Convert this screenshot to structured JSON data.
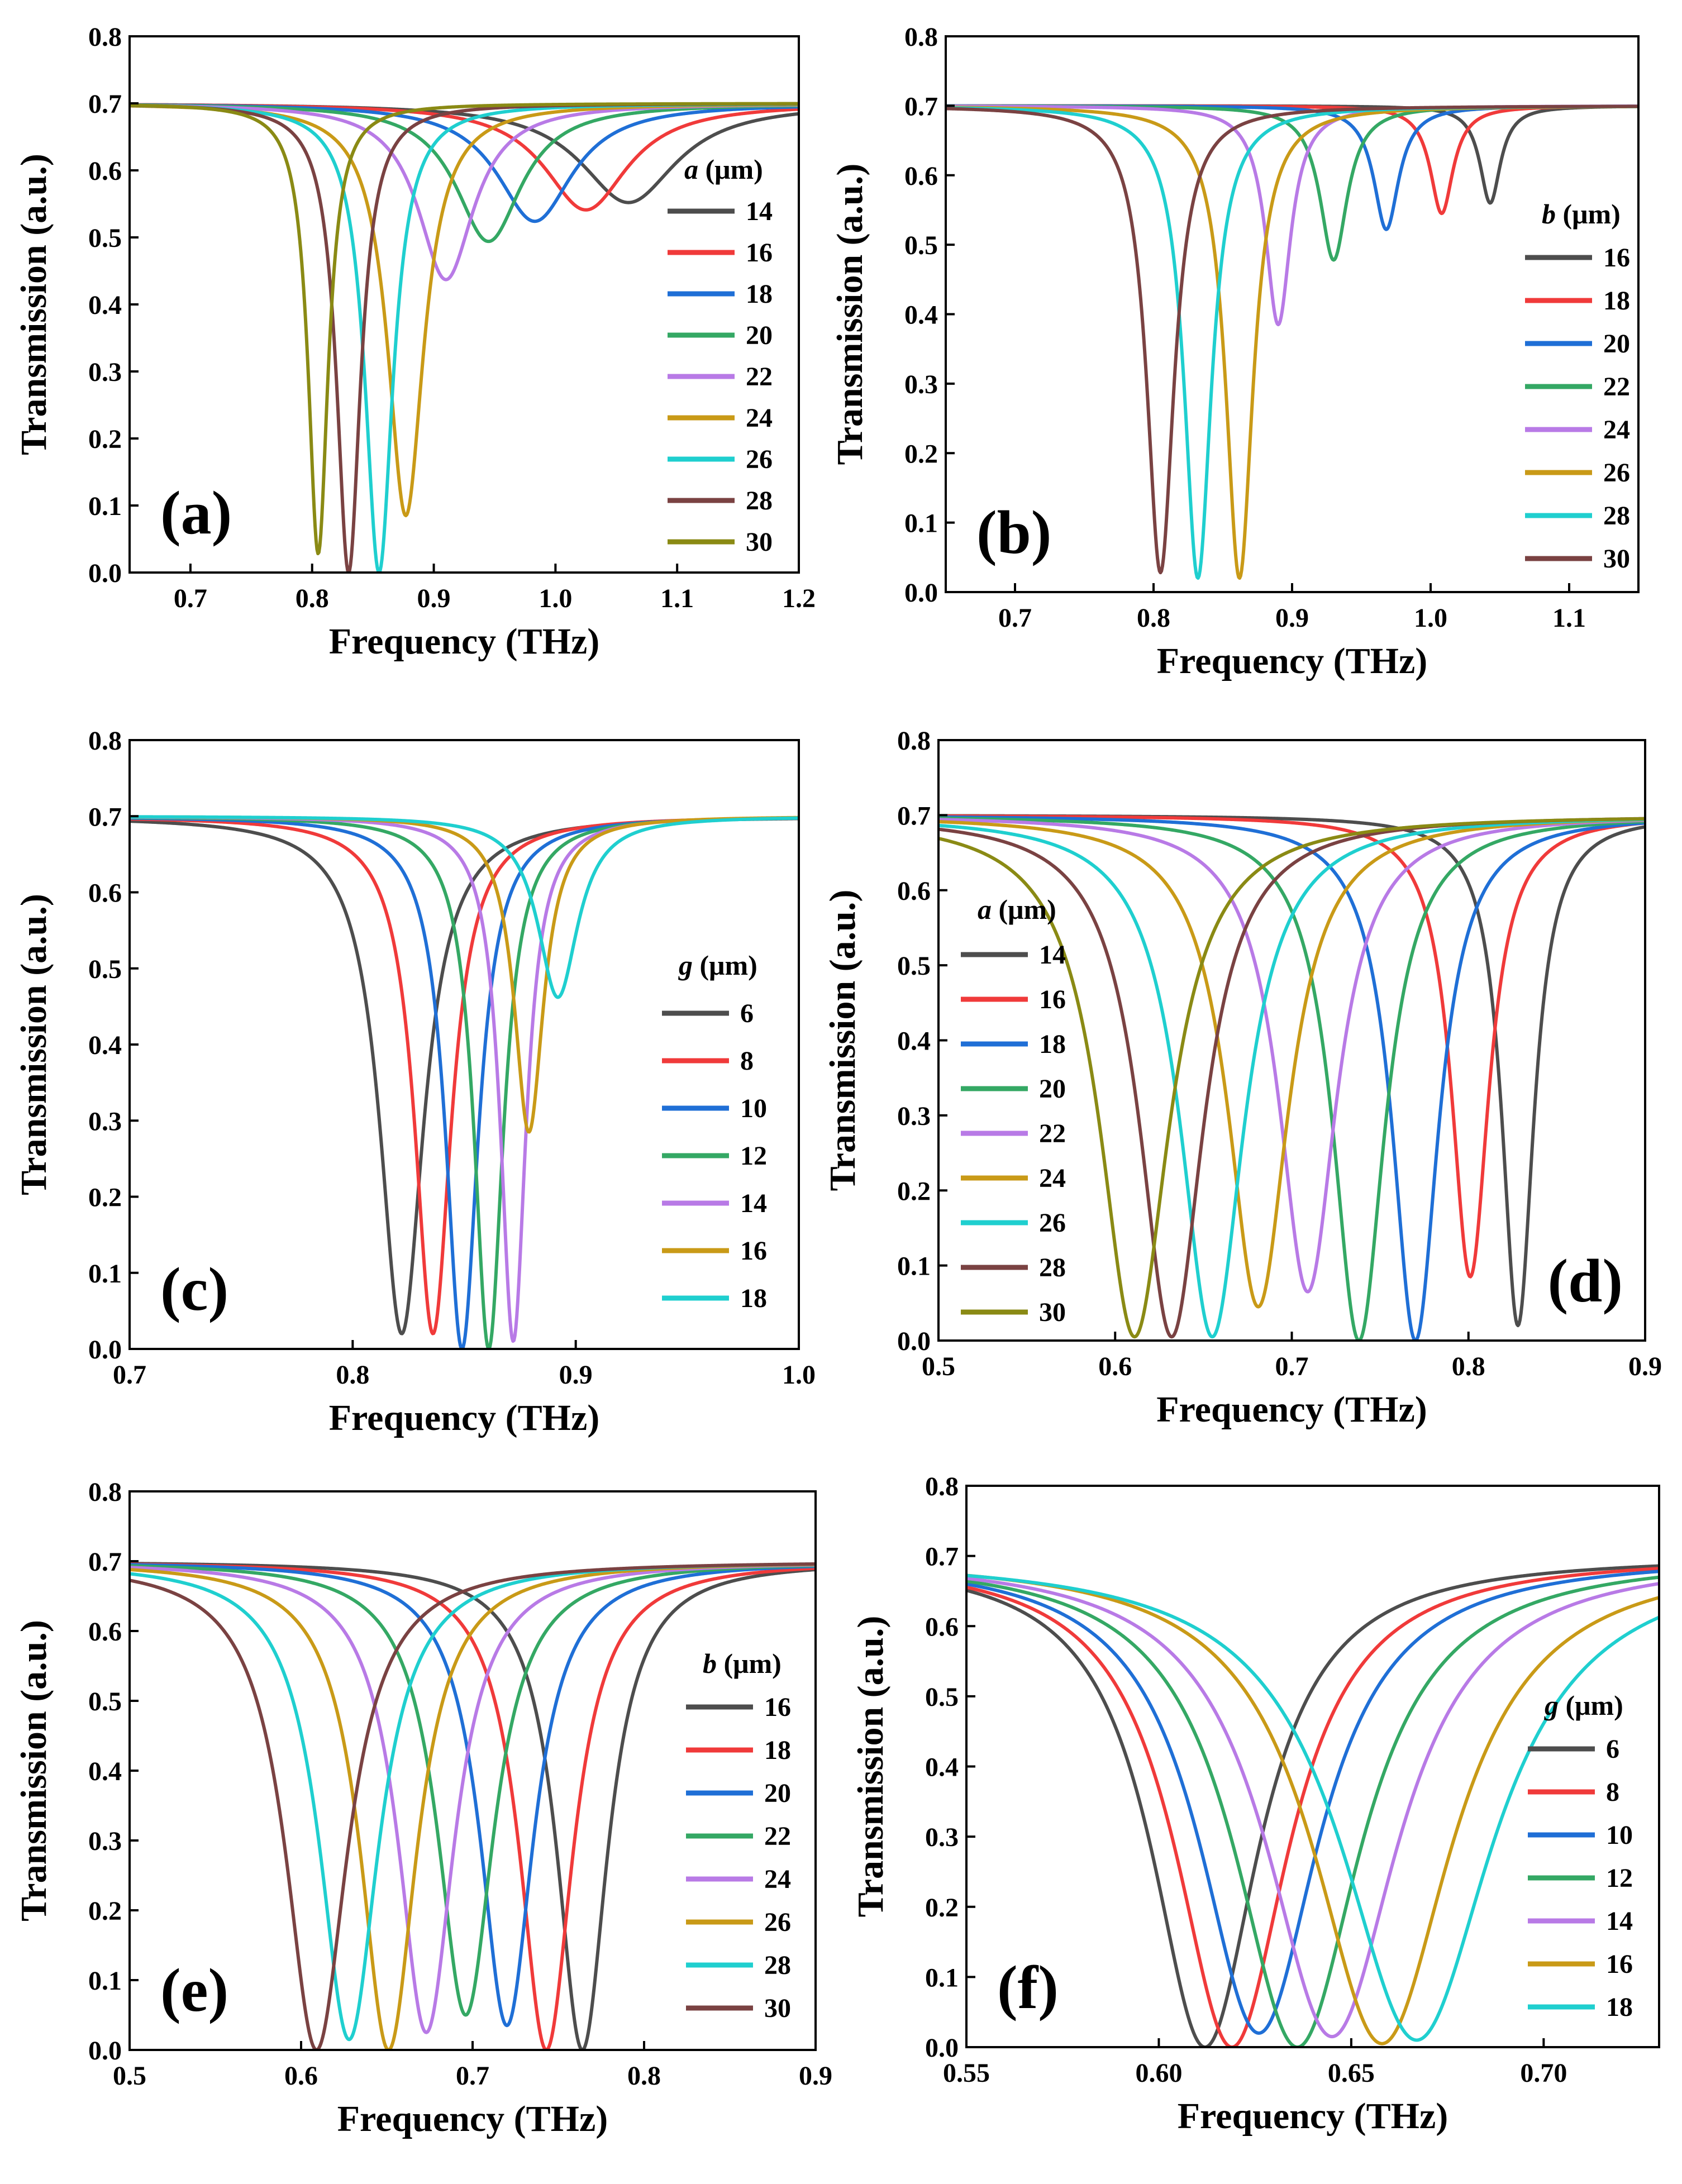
{
  "colors": {
    "c1": "#4d4d4d",
    "c2": "#f03a3a",
    "c3": "#1f6fd6",
    "c4": "#34a864",
    "c5": "#b87ae6",
    "c6": "#c99a17",
    "c7": "#1fcfcf",
    "c8": "#7a4242",
    "c9": "#8a8a14"
  },
  "chart_data": [
    {
      "id": "a",
      "type": "line",
      "panel_label": "(a)",
      "xlabel": "Frequency (THz)",
      "ylabel": "Transmission (a.u.)",
      "xlim": [
        0.65,
        1.2
      ],
      "ylim": [
        0.0,
        0.8
      ],
      "xticks": [
        0.7,
        0.8,
        0.9,
        1.0,
        1.1,
        1.2
      ],
      "yticks": [
        0.0,
        0.1,
        0.2,
        0.3,
        0.4,
        0.5,
        0.6,
        0.7,
        0.8
      ],
      "legend_var": "a",
      "legend_unit": " (μm)",
      "legend_location": "right",
      "series": [
        {
          "name": "14",
          "color": "c1",
          "f0": 1.06,
          "min": 0.552,
          "width": 0.048
        },
        {
          "name": "16",
          "color": "c2",
          "f0": 1.025,
          "min": 0.541,
          "width": 0.042
        },
        {
          "name": "18",
          "color": "c3",
          "f0": 0.983,
          "min": 0.524,
          "width": 0.038
        },
        {
          "name": "20",
          "color": "c4",
          "f0": 0.945,
          "min": 0.494,
          "width": 0.033
        },
        {
          "name": "22",
          "color": "c5",
          "f0": 0.91,
          "min": 0.437,
          "width": 0.028
        },
        {
          "name": "24",
          "color": "c6",
          "f0": 0.877,
          "min": 0.085,
          "width": 0.018
        },
        {
          "name": "26",
          "color": "c7",
          "f0": 0.855,
          "min": 0.0,
          "width": 0.014
        },
        {
          "name": "28",
          "color": "c8",
          "f0": 0.83,
          "min": 0.0,
          "width": 0.012
        },
        {
          "name": "30",
          "color": "c9",
          "f0": 0.805,
          "min": 0.028,
          "width": 0.01
        }
      ]
    },
    {
      "id": "b",
      "type": "line",
      "panel_label": "(b)",
      "xlabel": "Frequency (THz)",
      "ylabel": "Transmission (a.u.)",
      "xlim": [
        0.65,
        1.15
      ],
      "ylim": [
        0.0,
        0.8
      ],
      "xticks": [
        0.7,
        0.8,
        0.9,
        1.0,
        1.1
      ],
      "yticks": [
        0.0,
        0.1,
        0.2,
        0.3,
        0.4,
        0.5,
        0.6,
        0.7,
        0.8
      ],
      "legend_var": "b",
      "legend_unit": " (μm)",
      "legend_location": "right",
      "series": [
        {
          "name": "16",
          "color": "c1",
          "f0": 1.043,
          "min": 0.56,
          "width": 0.009
        },
        {
          "name": "18",
          "color": "c2",
          "f0": 1.008,
          "min": 0.545,
          "width": 0.01
        },
        {
          "name": "20",
          "color": "c3",
          "f0": 0.968,
          "min": 0.522,
          "width": 0.011
        },
        {
          "name": "22",
          "color": "c4",
          "f0": 0.93,
          "min": 0.478,
          "width": 0.012
        },
        {
          "name": "24",
          "color": "c5",
          "f0": 0.89,
          "min": 0.385,
          "width": 0.011
        },
        {
          "name": "26",
          "color": "c6",
          "f0": 0.862,
          "min": 0.02,
          "width": 0.012
        },
        {
          "name": "28",
          "color": "c7",
          "f0": 0.832,
          "min": 0.02,
          "width": 0.012
        },
        {
          "name": "30",
          "color": "c8",
          "f0": 0.805,
          "min": 0.028,
          "width": 0.012
        }
      ]
    },
    {
      "id": "c",
      "type": "line",
      "panel_label": "(c)",
      "xlabel": "Frequency (THz)",
      "ylabel": "Transmission (a.u.)",
      "xlim": [
        0.7,
        1.0
      ],
      "ylim": [
        0.0,
        0.8
      ],
      "xticks": [
        0.7,
        0.8,
        0.9,
        1.0
      ],
      "yticks": [
        0.0,
        0.1,
        0.2,
        0.3,
        0.4,
        0.5,
        0.6,
        0.7,
        0.8
      ],
      "legend_var": "g",
      "legend_unit": " (μm)",
      "legend_location": "right",
      "series": [
        {
          "name": "6",
          "color": "c1",
          "f0": 0.822,
          "min": 0.02,
          "width": 0.012
        },
        {
          "name": "8",
          "color": "c2",
          "f0": 0.836,
          "min": 0.02,
          "width": 0.01
        },
        {
          "name": "10",
          "color": "c3",
          "f0": 0.849,
          "min": 0.0,
          "width": 0.009
        },
        {
          "name": "12",
          "color": "c4",
          "f0": 0.861,
          "min": 0.0,
          "width": 0.008
        },
        {
          "name": "14",
          "color": "c5",
          "f0": 0.872,
          "min": 0.01,
          "width": 0.007
        },
        {
          "name": "16",
          "color": "c6",
          "f0": 0.879,
          "min": 0.285,
          "width": 0.008
        },
        {
          "name": "18",
          "color": "c7",
          "f0": 0.892,
          "min": 0.462,
          "width": 0.011
        }
      ]
    },
    {
      "id": "d",
      "type": "line",
      "panel_label": "(d)",
      "xlabel": "Frequency (THz)",
      "ylabel": "Transmission (a.u.)",
      "xlim": [
        0.5,
        0.9
      ],
      "ylim": [
        0.0,
        0.8
      ],
      "xticks": [
        0.5,
        0.6,
        0.7,
        0.8,
        0.9
      ],
      "yticks": [
        0.0,
        0.1,
        0.2,
        0.3,
        0.4,
        0.5,
        0.6,
        0.7,
        0.8
      ],
      "legend_var": "a",
      "legend_unit": " (μm)",
      "legend_location": "left",
      "series": [
        {
          "name": "14",
          "color": "c1",
          "f0": 0.828,
          "min": 0.02,
          "width": 0.011
        },
        {
          "name": "16",
          "color": "c2",
          "f0": 0.801,
          "min": 0.085,
          "width": 0.013
        },
        {
          "name": "18",
          "color": "c3",
          "f0": 0.77,
          "min": 0.0,
          "width": 0.016
        },
        {
          "name": "20",
          "color": "c4",
          "f0": 0.738,
          "min": 0.0,
          "width": 0.018
        },
        {
          "name": "22",
          "color": "c5",
          "f0": 0.709,
          "min": 0.065,
          "width": 0.02
        },
        {
          "name": "24",
          "color": "c6",
          "f0": 0.681,
          "min": 0.045,
          "width": 0.021
        },
        {
          "name": "26",
          "color": "c7",
          "f0": 0.655,
          "min": 0.005,
          "width": 0.022
        },
        {
          "name": "28",
          "color": "c8",
          "f0": 0.632,
          "min": 0.005,
          "width": 0.022
        },
        {
          "name": "30",
          "color": "c9",
          "f0": 0.611,
          "min": 0.005,
          "width": 0.024
        }
      ]
    },
    {
      "id": "e",
      "type": "line",
      "panel_label": "(e)",
      "xlabel": "Frequency (THz)",
      "ylabel": "Transmission (a.u.)",
      "xlim": [
        0.5,
        0.9
      ],
      "ylim": [
        0.0,
        0.8
      ],
      "xticks": [
        0.5,
        0.6,
        0.7,
        0.8,
        0.9
      ],
      "yticks": [
        0.0,
        0.1,
        0.2,
        0.3,
        0.4,
        0.5,
        0.6,
        0.7,
        0.8
      ],
      "legend_var": "b",
      "legend_unit": " (μm)",
      "legend_location": "right",
      "series": [
        {
          "name": "16",
          "color": "c1",
          "f0": 0.764,
          "min": 0.0,
          "width": 0.018
        },
        {
          "name": "18",
          "color": "c2",
          "f0": 0.743,
          "min": 0.0,
          "width": 0.019
        },
        {
          "name": "20",
          "color": "c3",
          "f0": 0.72,
          "min": 0.035,
          "width": 0.019
        },
        {
          "name": "22",
          "color": "c4",
          "f0": 0.696,
          "min": 0.05,
          "width": 0.02
        },
        {
          "name": "24",
          "color": "c5",
          "f0": 0.673,
          "min": 0.025,
          "width": 0.02
        },
        {
          "name": "26",
          "color": "c6",
          "f0": 0.651,
          "min": 0.0,
          "width": 0.02
        },
        {
          "name": "28",
          "color": "c7",
          "f0": 0.628,
          "min": 0.015,
          "width": 0.021
        },
        {
          "name": "30",
          "color": "c8",
          "f0": 0.609,
          "min": 0.0,
          "width": 0.022
        }
      ]
    },
    {
      "id": "f",
      "type": "line",
      "panel_label": "(f)",
      "xlabel": "Frequency (THz)",
      "ylabel": "Transmission (a.u.)",
      "xlim": [
        0.55,
        0.73
      ],
      "ylim": [
        0.0,
        0.8
      ],
      "xticks": [
        0.55,
        0.6,
        0.65,
        0.7
      ],
      "xtick_labels": [
        "0.55",
        "0.60",
        "0.65",
        "0.70"
      ],
      "yticks": [
        0.0,
        0.1,
        0.2,
        0.3,
        0.4,
        0.5,
        0.6,
        0.7,
        0.8
      ],
      "legend_var": "g",
      "legend_unit": " (μm)",
      "legend_location": "right",
      "series": [
        {
          "name": "6",
          "color": "c1",
          "f0": 0.612,
          "min": 0.0,
          "width": 0.017
        },
        {
          "name": "8",
          "color": "c2",
          "f0": 0.619,
          "min": 0.0,
          "width": 0.018
        },
        {
          "name": "10",
          "color": "c3",
          "f0": 0.626,
          "min": 0.02,
          "width": 0.019
        },
        {
          "name": "12",
          "color": "c4",
          "f0": 0.636,
          "min": 0.0,
          "width": 0.02
        },
        {
          "name": "14",
          "color": "c5",
          "f0": 0.645,
          "min": 0.015,
          "width": 0.021
        },
        {
          "name": "16",
          "color": "c6",
          "f0": 0.658,
          "min": 0.005,
          "width": 0.022
        },
        {
          "name": "18",
          "color": "c7",
          "f0": 0.667,
          "min": 0.01,
          "width": 0.024
        }
      ]
    }
  ]
}
